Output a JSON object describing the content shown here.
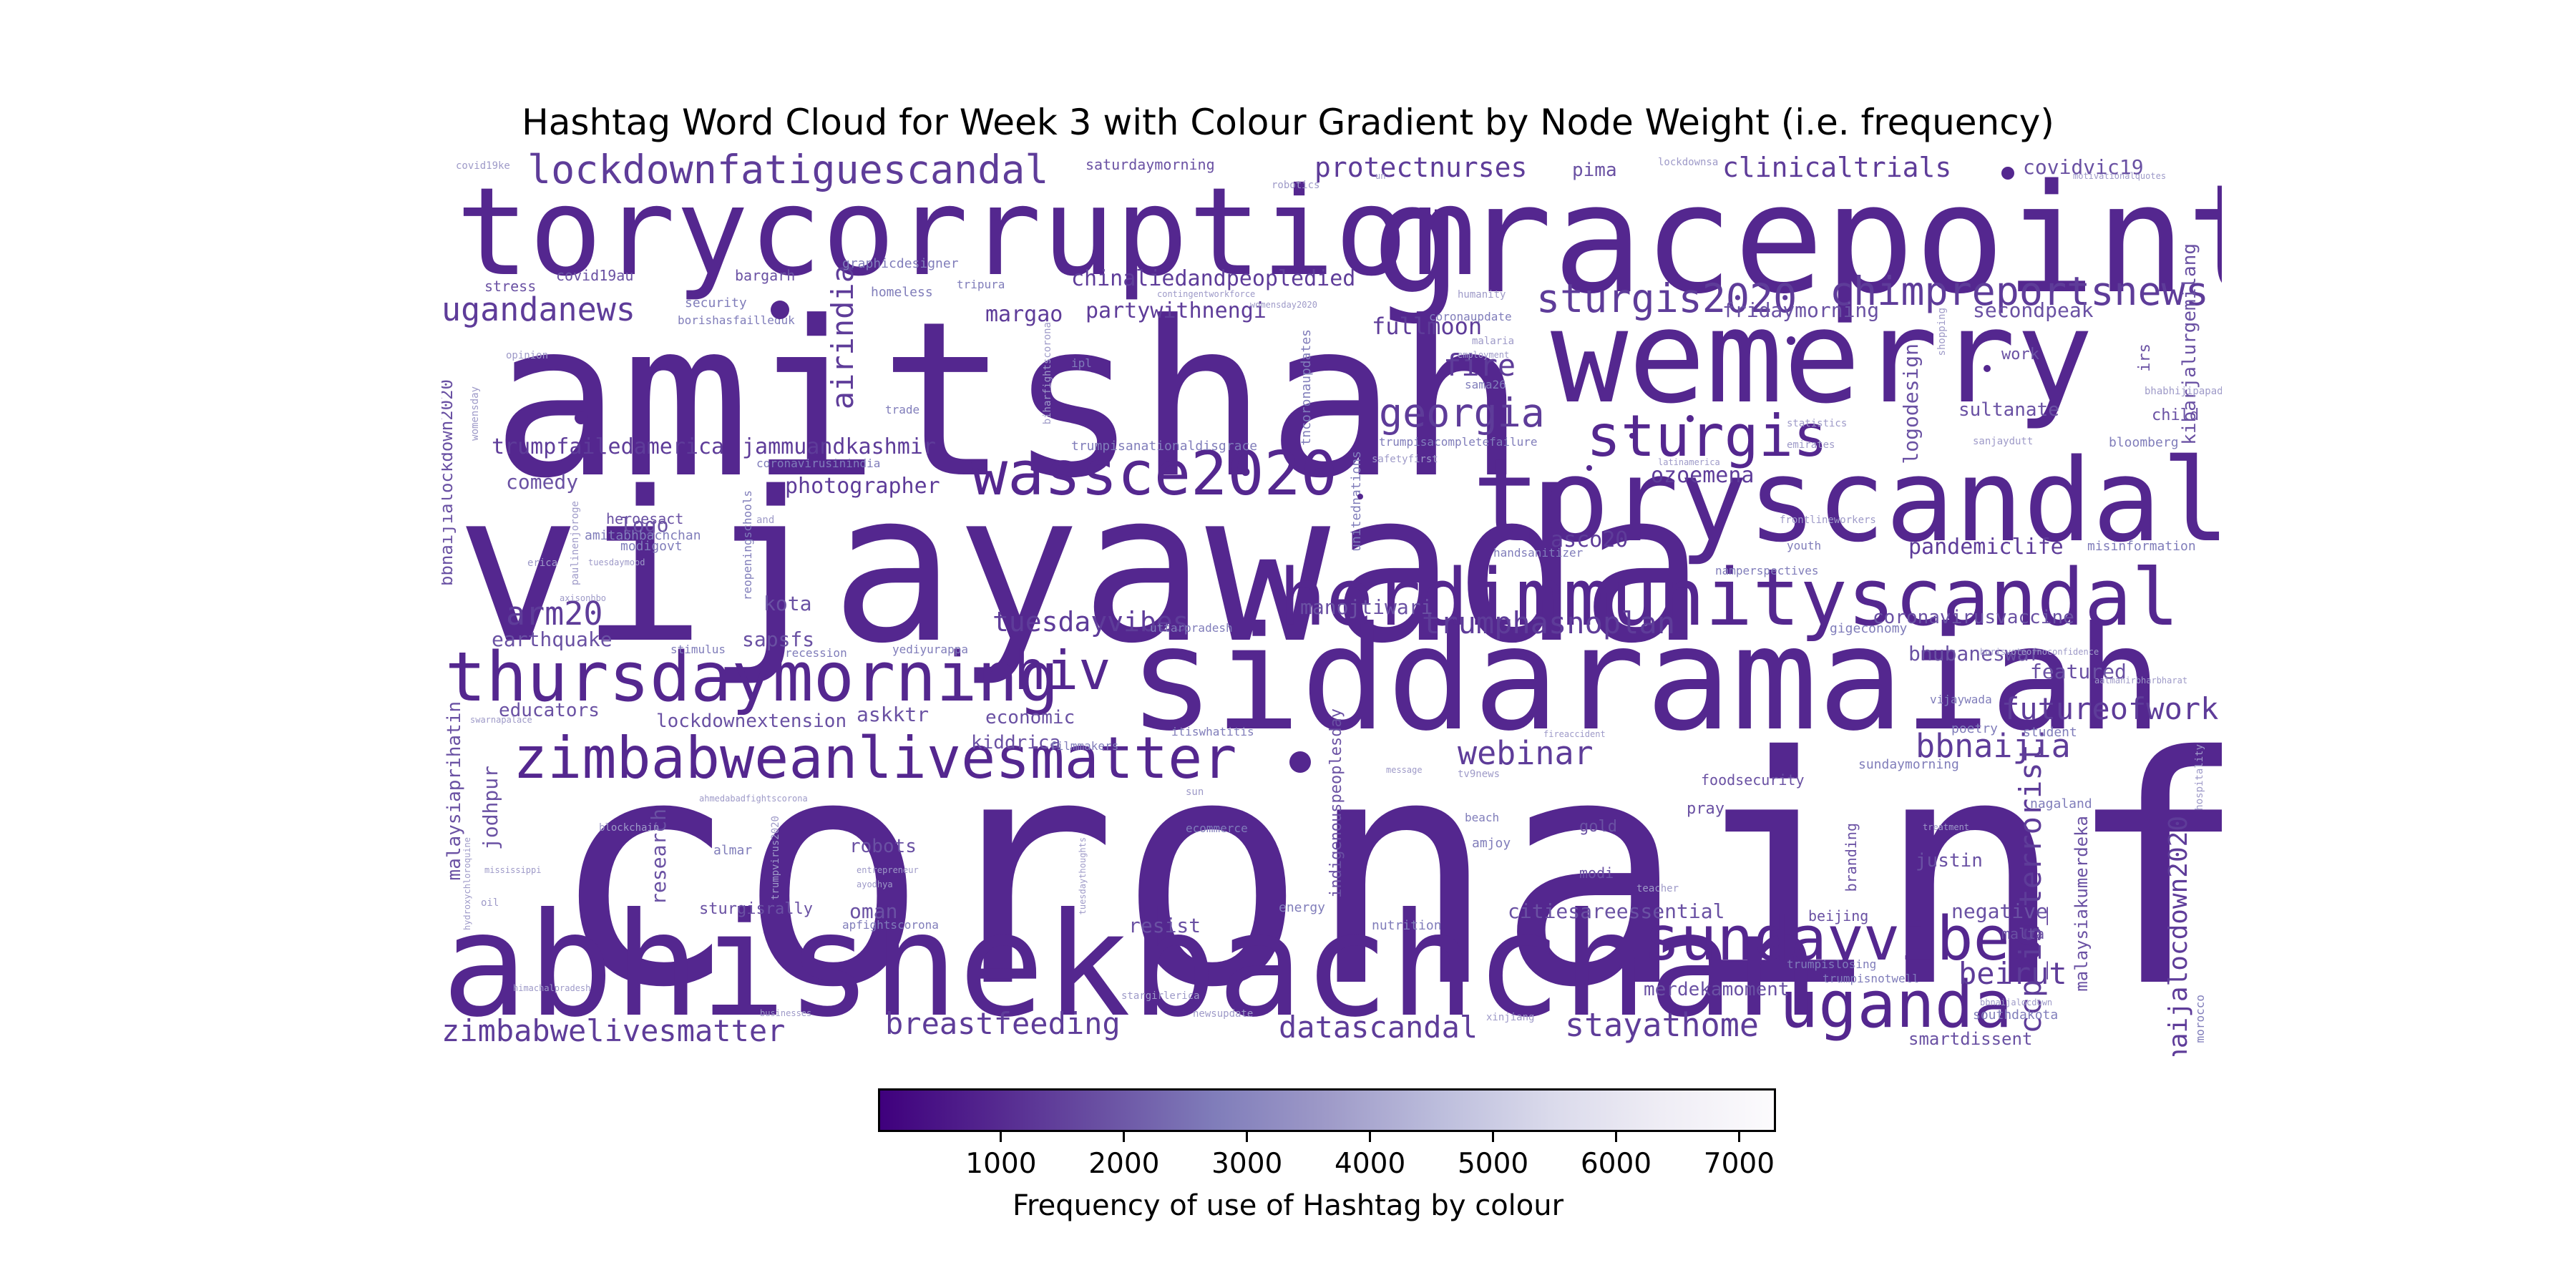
{
  "chart_data": {
    "type": "wordcloud",
    "title": "Hashtag Word Cloud for Week 3 with Colour Gradient by Node Weight (i.e. frequency)",
    "colorbar": {
      "label": "Frequency of use of Hashtag by colour",
      "ticks": [
        1000,
        2000,
        3000,
        4000,
        5000,
        6000,
        7000
      ],
      "range": [
        0,
        7300
      ],
      "colormap": "Purples_r",
      "colors": [
        "#3f007d",
        "#54278f",
        "#6a51a3",
        "#807dba",
        "#9e9ac8",
        "#bcbddc",
        "#dadaeb",
        "#efedf5",
        "#fcfbfd"
      ]
    },
    "words": [
      "coronainfoch",
      "amitshah",
      "vijayawada",
      "abhishekbachchan",
      "siddaramaiah",
      "gracepoint",
      "torycorruption",
      "wemerry",
      "toryscandals",
      "herdimmunityscandal",
      "thursdaymorning",
      "zimbabweanlivesmatter",
      "sundayvibes",
      "wassce2020",
      "hiv",
      "uganda",
      "sturgis",
      "lockdownfatiguescandal",
      "chimpreportsnews",
      "sturgis2020",
      "georgia",
      "breastfeeding",
      "zimbabwelivesmatter",
      "stayathome",
      "datascandal",
      "ugandanews",
      "arm20",
      "trumphasnoplan",
      "futureofwork",
      "webinar",
      "bbnaijia",
      "tuesdayvibes",
      "protectnurses",
      "clinicaltrials",
      "chinaliedandpeopledied",
      "airindia",
      "beirut",
      "ccp_is_terrorist",
      "bbnaijalocdown2020",
      "fire",
      "fullmoon",
      "ozoemena",
      "asco20",
      "pandemiclife",
      "trumpfailedamerica",
      "jammuandkashmir",
      "photographer",
      "partywithnengi",
      "margao",
      "covidvic19",
      "secondpeak",
      "fridaymorning",
      "logodesign",
      "sultanate",
      "kibarjalurgemilang",
      "comedy",
      "logo",
      "kota",
      "earthquake",
      "sapsfs",
      "manojtiwari",
      "coronavirusvaccine",
      "bhubaneswar",
      "featured",
      "educators",
      "lockdownextension",
      "askktr",
      "economic",
      "kiddrica",
      "jodhpur",
      "research",
      "robots",
      "oman",
      "resist",
      "citiesareessential",
      "negative",
      "justin",
      "malaysiakumerdeka",
      "merdekamoment",
      "smartdissent",
      "malaysiaprihatin",
      "bbnaijialockdown2020",
      "sturgisrally",
      "pima",
      "work",
      "saturdaymorning",
      "stress",
      "covid19au",
      "bargarh",
      "graphicdesigner",
      "homeless",
      "security",
      "borishasfailleduk",
      "heroesact",
      "amitabhbachchan",
      "modigovt",
      "pray",
      "gold",
      "modi",
      "beijing",
      "branding",
      "malta",
      "southdakota",
      "nagaland",
      "foodsecurity",
      "sundaymorning",
      "poetry",
      "student",
      "irs",
      "child",
      "bloomberg",
      "misinformation",
      "youth",
      "gigeconomy",
      "vijaywada",
      "nutrition",
      "energy",
      "apfightscorona",
      "indigenouspeoplesday",
      "ecommerce",
      "beach",
      "amjoy",
      "tv9news",
      "almar",
      "trumpisnotwell",
      "trumpislosing",
      "stargirlerica",
      "newsupdate",
      "xinjiang",
      "morocco",
      "hospitality",
      "covid19ke",
      "lockdownsa",
      "motivationalquotes",
      "robotics",
      "trumpisanationaldisgrace",
      "coronavirusinindia",
      "trumpisacompletefailure",
      "safetyfirst",
      "unitednations",
      "tncoronaupdates",
      "handsanitizer",
      "frontlineworkers",
      "namperspectives",
      "latinamerica",
      "sama26",
      "malaria",
      "employment",
      "humanity",
      "coronaupdate",
      "womensday2020",
      "shopping",
      "bhabhijipapad",
      "statistics",
      "emirates",
      "sanjaydutt",
      "trade",
      "ipl",
      "biharfightscorona",
      "contingentworkforce",
      "tripura",
      "uttarpradesh",
      "yediyurappa",
      "recession",
      "stimulus",
      "reopeningschools",
      "paulinenjoroge",
      "tuesdaymood",
      "opinion",
      "womensday",
      "axisonhbo",
      "erica",
      "and",
      "blockchain",
      "mississippi",
      "oil",
      "hydroxychloroquine",
      "swarnapalace",
      "itiswhatitis",
      "filmmakers",
      "message",
      "sun",
      "entrepreneur",
      "ayodhya",
      "trumpvirus2020",
      "teacher",
      "treatment",
      "fireaccident",
      "ahmedabadfightscorona",
      "tuesdaythoughts",
      "himachalpradesh",
      "businesses",
      "bbnaijalocdown",
      "borisvoteofnoconfidence",
      "aatmanirbharbharat",
      "un"
    ]
  }
}
